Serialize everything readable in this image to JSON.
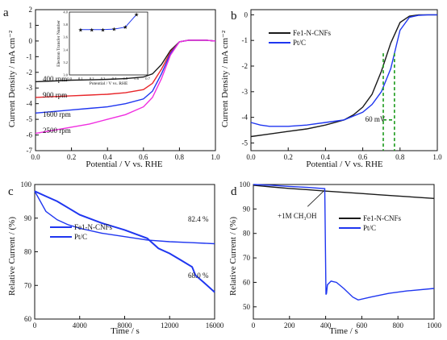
{
  "figure": {
    "panels": [
      {
        "label": "a",
        "xlabel": "Potential / V vs. RHE",
        "ylabel": "Current Density / mA cm⁻²",
        "ylim": [
          -7,
          2
        ],
        "xlim": [
          0,
          1
        ],
        "xticks": [
          "0.0",
          "0.2",
          "0.4",
          "0.6",
          "0.8",
          "1.0"
        ],
        "yticks": [
          "-7",
          "-6",
          "-5",
          "-4",
          "-3",
          "-2",
          "-1",
          "0",
          "1",
          "2"
        ],
        "ytick_values": [
          -7,
          -6,
          -5,
          -4,
          -3,
          -2,
          -1,
          0,
          1,
          2
        ],
        "curve_labels": [
          "400 rpm",
          "900 rpm",
          "1600 rpm",
          "2500 rpm"
        ],
        "inset": {
          "xlabel": "Potential / V vs. RHE",
          "ylabel": "Electron Transfer Number",
          "yticks": [
            "3.0",
            "3.2",
            "3.4",
            "3.6",
            "3.8",
            "4.0"
          ],
          "xticks": [
            "0.0",
            "0.1",
            "0.2",
            "0.3",
            "0.4",
            "0.5",
            "0.6",
            "0.7"
          ]
        }
      },
      {
        "label": "b",
        "xlabel": "Potential / V vs. RHE",
        "ylabel": "Current Density / mA cm⁻²",
        "xticks": [
          "0.0",
          "0.2",
          "0.4",
          "0.6",
          "0.8",
          "1.0"
        ],
        "yticks": [
          "-5",
          "-4",
          "-3",
          "-2",
          "-1",
          "0"
        ],
        "legend": [
          "Fe1-N-CNFs",
          "Pt/C"
        ],
        "annotation": "60 mV"
      },
      {
        "label": "c",
        "xlabel": "Time / s",
        "ylabel": "Relative Current / (%)",
        "xticks": [
          "0",
          "4000",
          "8000",
          "12000",
          "16000"
        ],
        "yticks": [
          "60",
          "70",
          "80",
          "90",
          "100"
        ],
        "legend": [
          "Fe1-N-CNFs",
          "Pt/C"
        ],
        "annotations": [
          "82.4 %",
          "68.0 %"
        ]
      },
      {
        "label": "d",
        "xlabel": "Time / s",
        "ylabel": "Relative Current / (%)",
        "xticks": [
          "0",
          "200",
          "400",
          "600",
          "800",
          "1000"
        ],
        "yticks": [
          "50",
          "60",
          "70",
          "80",
          "90",
          "100"
        ],
        "legend": [
          "Fe1-N-CNFs",
          "Pt/C"
        ],
        "annotation": "+1M CH₃OH"
      }
    ]
  },
  "colors": {
    "black": "#1a1a1a",
    "red": "#e8262a",
    "blue": "#1f36f0",
    "magenta": "#f02ee0",
    "green": "#1a9a1a"
  },
  "chart_data": [
    {
      "type": "line",
      "panel": "a",
      "xlabel": "Potential / V vs. RHE",
      "ylabel": "Current Density / mA cm⁻²",
      "xlim": [
        0,
        1
      ],
      "ylim": [
        -7,
        2
      ],
      "series": [
        {
          "name": "400 rpm",
          "x": [
            0,
            0.1,
            0.2,
            0.3,
            0.4,
            0.5,
            0.6,
            0.65,
            0.7,
            0.75,
            0.8,
            0.85,
            0.9,
            0.95,
            1.0
          ],
          "y": [
            -2.6,
            -2.55,
            -2.5,
            -2.48,
            -2.45,
            -2.4,
            -2.3,
            -2.1,
            -1.5,
            -0.6,
            -0.05,
            0.05,
            0.05,
            0.05,
            0.0
          ]
        },
        {
          "name": "900 rpm",
          "x": [
            0,
            0.1,
            0.2,
            0.3,
            0.4,
            0.5,
            0.6,
            0.65,
            0.7,
            0.75,
            0.8,
            0.85,
            0.9,
            0.95,
            1.0
          ],
          "y": [
            -3.6,
            -3.55,
            -3.5,
            -3.45,
            -3.4,
            -3.3,
            -3.1,
            -2.7,
            -1.8,
            -0.7,
            -0.05,
            0.05,
            0.05,
            0.05,
            0.0
          ]
        },
        {
          "name": "1600 rpm",
          "x": [
            0,
            0.1,
            0.2,
            0.3,
            0.4,
            0.5,
            0.6,
            0.65,
            0.7,
            0.75,
            0.8,
            0.85,
            0.9,
            0.95,
            1.0
          ],
          "y": [
            -4.6,
            -4.5,
            -4.4,
            -4.3,
            -4.2,
            -4.0,
            -3.7,
            -3.2,
            -2.1,
            -0.8,
            -0.05,
            0.05,
            0.05,
            0.05,
            0.0
          ]
        },
        {
          "name": "2500 rpm",
          "x": [
            0,
            0.1,
            0.2,
            0.3,
            0.4,
            0.5,
            0.6,
            0.65,
            0.7,
            0.75,
            0.8,
            0.85,
            0.9,
            0.95,
            1.0
          ],
          "y": [
            -5.9,
            -5.7,
            -5.5,
            -5.3,
            -5.0,
            -4.7,
            -4.2,
            -3.6,
            -2.4,
            -0.9,
            -0.05,
            0.05,
            0.05,
            0.05,
            0.0
          ]
        }
      ],
      "inset": {
        "type": "scatter",
        "xlabel": "Potential / V vs. RHE",
        "ylabel": "Electron Transfer Number",
        "xlim": [
          0,
          0.7
        ],
        "ylim": [
          3.0,
          4.0
        ],
        "x": [
          0.1,
          0.2,
          0.3,
          0.4,
          0.5,
          0.6
        ],
        "y": [
          3.72,
          3.72,
          3.72,
          3.73,
          3.76,
          3.96
        ]
      }
    },
    {
      "type": "line",
      "panel": "b",
      "xlabel": "Potential / V vs. RHE",
      "ylabel": "Current Density / mA cm⁻²",
      "xlim": [
        0,
        1
      ],
      "ylim": [
        -5.3,
        0.2
      ],
      "series": [
        {
          "name": "Fe1-N-CNFs",
          "x": [
            0,
            0.1,
            0.2,
            0.3,
            0.4,
            0.5,
            0.55,
            0.6,
            0.65,
            0.7,
            0.75,
            0.8,
            0.85,
            0.9,
            0.95,
            1.0
          ],
          "y": [
            -4.75,
            -4.65,
            -4.55,
            -4.45,
            -4.3,
            -4.1,
            -3.9,
            -3.6,
            -3.1,
            -2.2,
            -1.1,
            -0.3,
            -0.05,
            0.0,
            0.0,
            0.0
          ]
        },
        {
          "name": "Pt/C",
          "x": [
            0,
            0.05,
            0.1,
            0.2,
            0.3,
            0.4,
            0.5,
            0.6,
            0.65,
            0.7,
            0.75,
            0.78,
            0.8,
            0.85,
            0.9,
            0.95,
            1.0
          ],
          "y": [
            -4.2,
            -4.3,
            -4.35,
            -4.35,
            -4.3,
            -4.2,
            -4.1,
            -3.8,
            -3.5,
            -3.0,
            -2.1,
            -1.2,
            -0.6,
            -0.1,
            -0.02,
            0.0,
            0.0
          ]
        }
      ],
      "annotations": [
        {
          "text": "60 mV",
          "x1": 0.71,
          "x2": 0.77
        }
      ]
    },
    {
      "type": "line",
      "panel": "c",
      "xlabel": "Time / s",
      "ylabel": "Relative Current / (%)",
      "xlim": [
        0,
        16000
      ],
      "ylim": [
        60,
        100
      ],
      "series": [
        {
          "name": "Fe1-N-CNFs",
          "x": [
            0,
            500,
            1000,
            2000,
            3000,
            4000,
            6000,
            8000,
            10000,
            12000,
            14000,
            16000
          ],
          "y": [
            98,
            95,
            92,
            89.5,
            88,
            87,
            85.5,
            84.5,
            83.5,
            83,
            82.7,
            82.4
          ]
        },
        {
          "name": "Pt/C",
          "x": [
            0,
            1000,
            2000,
            3000,
            4000,
            6000,
            8000,
            10000,
            11000,
            12000,
            13000,
            14000,
            14300,
            15000,
            16000
          ],
          "y": [
            98,
            96.5,
            95,
            93,
            91,
            88.5,
            86.5,
            84,
            81,
            79.5,
            77.5,
            75.5,
            73,
            71,
            68
          ]
        }
      ],
      "annotations": [
        "82.4 %",
        "68.0 %"
      ]
    },
    {
      "type": "line",
      "panel": "d",
      "xlabel": "Time / s",
      "ylabel": "Relative Current / (%)",
      "xlim": [
        0,
        1000
      ],
      "ylim": [
        45,
        100
      ],
      "series": [
        {
          "name": "Fe1-N-CNFs",
          "x": [
            0,
            100,
            200,
            300,
            400,
            500,
            600,
            700,
            800,
            900,
            1000
          ],
          "y": [
            99.7,
            99,
            98.4,
            97.9,
            97.3,
            96.8,
            96.3,
            95.8,
            95.3,
            94.8,
            94.3
          ]
        },
        {
          "name": "Pt/C",
          "x": [
            0,
            100,
            200,
            300,
            395,
            402,
            405,
            410,
            430,
            460,
            500,
            550,
            580,
            650,
            750,
            850,
            1000
          ],
          "y": [
            100,
            99.7,
            99.2,
            98.8,
            98.3,
            55,
            55.5,
            59,
            60.5,
            60,
            57.5,
            54,
            52.8,
            54,
            55.5,
            56.5,
            57.5
          ]
        }
      ],
      "annotations": [
        "+1M CH₃OH"
      ]
    }
  ]
}
